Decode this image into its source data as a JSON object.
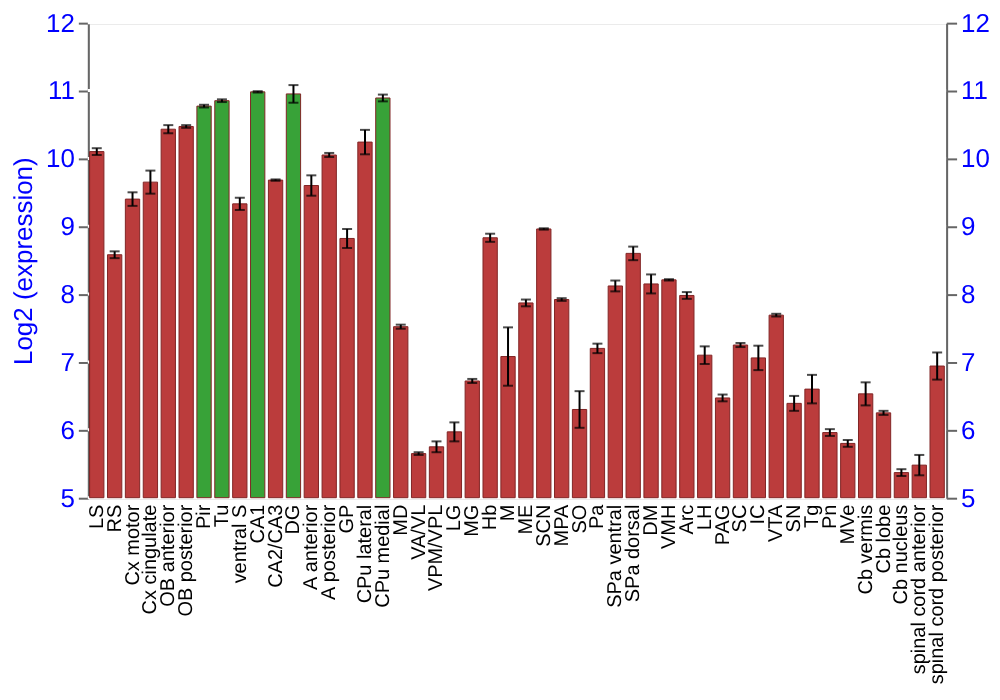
{
  "chart_data": {
    "type": "bar",
    "ylabel": "Log2 (expression)",
    "categories": [
      "LS",
      "RS",
      "Cx motor",
      "Cx cingulate",
      "OB anterior",
      "OB posterior",
      "Pir",
      "Tu",
      "ventral S",
      "CA1",
      "CA2/CA3",
      "DG",
      "A anterior",
      "A posterior",
      "GP",
      "CPu lateral",
      "CPu medial",
      "MD",
      "VA/VL",
      "VPM/VPL",
      "LG",
      "MG",
      "Hb",
      "M",
      "ME",
      "SCN",
      "MPA",
      "SO",
      "Pa",
      "SPa ventral",
      "SPa dorsal",
      "DM",
      "VMH",
      "Arc",
      "LH",
      "PAG",
      "SC",
      "IC",
      "VTA",
      "SN",
      "Tg",
      "Pn",
      "MVe",
      "Cb vermis",
      "Cb lobe",
      "Cb nucleus",
      "spinal cord anterior",
      "spinal cord posterior"
    ],
    "values": [
      10.1,
      8.58,
      9.4,
      9.65,
      10.43,
      10.47,
      10.77,
      10.85,
      9.33,
      10.98,
      9.68,
      10.95,
      9.6,
      10.05,
      8.82,
      10.24,
      10.89,
      7.52,
      5.65,
      5.75,
      5.97,
      6.72,
      8.83,
      7.08,
      7.87,
      8.96,
      7.92,
      6.3,
      7.2,
      8.12,
      8.6,
      8.15,
      8.21,
      7.98,
      7.1,
      6.47,
      7.25,
      7.06,
      7.69,
      6.39,
      6.6,
      5.96,
      5.8,
      6.53,
      6.25,
      5.37,
      5.48,
      6.94
    ],
    "errors": [
      0.05,
      0.05,
      0.1,
      0.17,
      0.06,
      0.02,
      0.02,
      0.02,
      0.09,
      0.01,
      0.01,
      0.13,
      0.15,
      0.03,
      0.14,
      0.18,
      0.05,
      0.03,
      0.02,
      0.08,
      0.14,
      0.03,
      0.06,
      0.43,
      0.05,
      0.01,
      0.02,
      0.27,
      0.07,
      0.08,
      0.1,
      0.14,
      0.01,
      0.05,
      0.13,
      0.05,
      0.03,
      0.18,
      0.02,
      0.11,
      0.21,
      0.05,
      0.05,
      0.17,
      0.03,
      0.05,
      0.15,
      0.2
    ],
    "colors": [
      "#b83232",
      "#b83232",
      "#b83232",
      "#b83232",
      "#b83232",
      "#b83232",
      "#2e9e2e",
      "#2e9e2e",
      "#b83232",
      "#2e9e2e",
      "#b83232",
      "#2e9e2e",
      "#b83232",
      "#b83232",
      "#b83232",
      "#b83232",
      "#2e9e2e",
      "#b83232",
      "#b83232",
      "#b83232",
      "#b83232",
      "#b83232",
      "#b83232",
      "#b83232",
      "#b83232",
      "#b83232",
      "#b83232",
      "#b83232",
      "#b83232",
      "#b83232",
      "#b83232",
      "#b83232",
      "#b83232",
      "#b83232",
      "#b83232",
      "#b83232",
      "#b83232",
      "#b83232",
      "#b83232",
      "#b83232",
      "#b83232",
      "#b83232",
      "#b83232",
      "#b83232",
      "#b83232",
      "#b83232",
      "#b83232",
      "#b83232"
    ],
    "ylim": [
      5,
      12
    ],
    "yticks": [
      5,
      6,
      7,
      8,
      9,
      10,
      11,
      12
    ],
    "y2lim": [
      5,
      12
    ],
    "y2ticks": [
      5,
      6,
      7,
      8,
      9,
      10,
      11,
      12
    ],
    "grid": "y",
    "legend": false
  }
}
